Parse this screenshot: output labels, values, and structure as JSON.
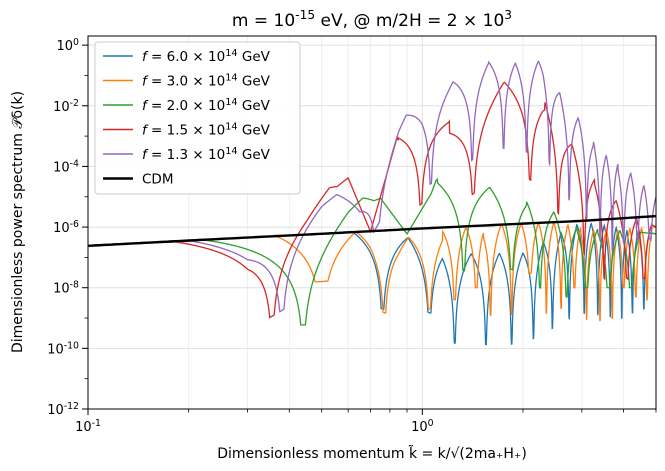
{
  "chart_data": {
    "type": "line",
    "title": "m = 10^{-15} eV,    @ m/2H = 2 × 10^{3}",
    "xlabel": "Dimensionless momentum k̃ = k/√(2ma₊H₊)",
    "ylabel": "Dimensionless power spectrum 𝒫δ(k)",
    "xscale": "log",
    "yscale": "log",
    "xlim": [
      0.1,
      5.0
    ],
    "ylim": [
      1e-12,
      2.0
    ],
    "grid": true,
    "legend_position": "top-left",
    "x_ticks": [
      {
        "value": 0.1,
        "label": "10^{-1}"
      },
      {
        "value": 1.0,
        "label": "10^{0}"
      }
    ],
    "y_ticks": [
      {
        "value": 1e-12,
        "label": "10^{-12}"
      },
      {
        "value": 1e-10,
        "label": "10^{-10}"
      },
      {
        "value": 1e-08,
        "label": "10^{-8}"
      },
      {
        "value": 1e-06,
        "label": "10^{-6}"
      },
      {
        "value": 0.0001,
        "label": "10^{-4}"
      },
      {
        "value": 0.01,
        "label": "10^{-2}"
      },
      {
        "value": 1.0,
        "label": "10^{0}"
      }
    ],
    "series": [
      {
        "name": "f = 6.0 × 10^{14} GeV",
        "color": "#1f77b4",
        "envelope": [
          [
            0.1,
            2.5e-07
          ],
          [
            0.5,
            6e-07
          ],
          [
            0.75,
            8.5e-07
          ],
          [
            1.3,
            1.3e-07
          ],
          [
            2.0,
            1.4e-07
          ],
          [
            3.0,
            1.5e-06
          ],
          [
            5.0,
            6e-07
          ]
        ],
        "minima": [
          [
            0.76,
            2e-09
          ],
          [
            1.05,
            1.5e-09
          ],
          [
            1.25,
            4e-11
          ],
          [
            1.55,
            1e-10
          ],
          [
            1.85,
            1e-10
          ],
          [
            2.15,
            8e-11
          ],
          [
            2.45,
            9e-11
          ],
          [
            2.75,
            1e-10
          ],
          [
            3.05,
            1.5e-10
          ],
          [
            3.35,
            2e-10
          ],
          [
            3.65,
            6e-10
          ],
          [
            3.95,
            1e-09
          ],
          [
            4.25,
            1.5e-09
          ],
          [
            4.6,
            2e-09
          ]
        ]
      },
      {
        "name": "f = 3.0 × 10^{14} GeV",
        "color": "#ff7f0e",
        "envelope": [
          [
            0.1,
            2.5e-07
          ],
          [
            0.5,
            6e-07
          ],
          [
            0.7,
            8e-07
          ],
          [
            0.85,
            4e-07
          ],
          [
            1.5,
            1.2e-06
          ],
          [
            2.5,
            1.5e-06
          ],
          [
            3.2,
            8e-07
          ],
          [
            5.0,
            1e-06
          ]
        ],
        "minima": [
          [
            0.5,
            1.6e-08
          ],
          [
            0.77,
            1.5e-09
          ],
          [
            1.05,
            2e-09
          ],
          [
            1.25,
            4e-09
          ],
          [
            1.45,
            1e-08
          ],
          [
            1.6,
            4e-10
          ],
          [
            1.85,
            1e-09
          ],
          [
            2.1,
            3e-08
          ],
          [
            2.35,
            4e-10
          ],
          [
            2.6,
            2e-09
          ],
          [
            2.85,
            1e-08
          ],
          [
            3.1,
            3e-11
          ],
          [
            3.4,
            4e-10
          ],
          [
            3.7,
            1e-09
          ],
          [
            4.0,
            1e-08
          ],
          [
            4.35,
            5e-09
          ],
          [
            4.7,
            4e-09
          ]
        ]
      },
      {
        "name": "f = 2.0 × 10^{14} GeV",
        "color": "#2ca02c",
        "envelope": [
          [
            0.1,
            2.5e-07
          ],
          [
            0.45,
            6e-07
          ],
          [
            0.6,
            6e-06
          ],
          [
            0.75,
            1.5e-05
          ],
          [
            0.9,
            1e-06
          ],
          [
            1.1,
            4e-05
          ],
          [
            1.3,
            4e-05
          ],
          [
            1.6,
            2e-05
          ],
          [
            2.0,
            1e-05
          ],
          [
            2.5,
            3e-06
          ],
          [
            3.0,
            1e-06
          ],
          [
            5.0,
            6e-07
          ]
        ],
        "minima": [
          [
            0.44,
            2.5e-10
          ],
          [
            0.89,
            7e-07
          ],
          [
            1.33,
            1e-10
          ],
          [
            1.85,
            4e-08
          ],
          [
            2.25,
            1e-08
          ],
          [
            2.7,
            5e-09
          ],
          [
            3.1,
            1e-08
          ],
          [
            3.6,
            1e-08
          ],
          [
            4.2,
            1e-08
          ]
        ]
      },
      {
        "name": "f = 1.5 × 10^{14} GeV",
        "color": "#d62728",
        "envelope": [
          [
            0.1,
            2.5e-07
          ],
          [
            0.3,
            4e-07
          ],
          [
            0.45,
            5e-06
          ],
          [
            0.6,
            6e-05
          ],
          [
            0.7,
            1e-06
          ],
          [
            0.85,
            0.002
          ],
          [
            1.0,
            0.006
          ],
          [
            1.2,
            0.003
          ],
          [
            1.5,
            0.02
          ],
          [
            1.75,
            0.06
          ],
          [
            2.0,
            0.05
          ],
          [
            2.3,
            0.02
          ],
          [
            2.7,
            0.001
          ],
          [
            3.2,
            6e-05
          ],
          [
            4.0,
            4e-06
          ],
          [
            5.0,
            1e-06
          ]
        ],
        "minima": [
          [
            0.355,
            5e-12
          ],
          [
            0.7,
            7e-07
          ],
          [
            0.99,
            1e-08
          ],
          [
            1.42,
            1.5e-08
          ],
          [
            2.1,
            5e-09
          ],
          [
            2.55,
            3e-10
          ],
          [
            3.05,
            2e-09
          ],
          [
            3.5,
            1e-08
          ],
          [
            4.1,
            2e-08
          ],
          [
            4.6,
            2e-08
          ]
        ]
      },
      {
        "name": "f = 1.3 × 10^{14} GeV",
        "color": "#9467bd",
        "envelope": [
          [
            0.1,
            2.5e-07
          ],
          [
            0.3,
            4e-07
          ],
          [
            0.5,
            1e-05
          ],
          [
            0.65,
            1.5e-05
          ],
          [
            0.85,
            0.003
          ],
          [
            1.0,
            0.02
          ],
          [
            1.2,
            0.05
          ],
          [
            1.45,
            0.2
          ],
          [
            1.75,
            0.4
          ],
          [
            2.0,
            0.3
          ],
          [
            2.3,
            0.3
          ],
          [
            2.7,
            0.01
          ],
          [
            3.0,
            0.003
          ],
          [
            3.3,
            0.0005
          ],
          [
            3.6,
            0.0002
          ],
          [
            4.0,
            0.0001
          ],
          [
            5.0,
            1e-05
          ]
        ],
        "minima": [
          [
            0.38,
            4e-10
          ],
          [
            0.73,
            1e-06
          ],
          [
            1.06,
            2e-07
          ],
          [
            1.41,
            1e-06
          ],
          [
            1.75,
            3e-06
          ],
          [
            2.05,
            1.5e-07
          ],
          [
            2.4,
            1e-08
          ],
          [
            2.75,
            1.5e-08
          ],
          [
            3.1,
            1e-08
          ],
          [
            3.4,
            3e-08
          ],
          [
            3.7,
            1e-07
          ],
          [
            4.0,
            3e-07
          ],
          [
            4.4,
            4e-07
          ],
          [
            4.8,
            4e-07
          ]
        ]
      },
      {
        "name": "CDM",
        "color": "#000000",
        "x": [
          0.1,
          0.2,
          0.5,
          1.0,
          2.0,
          3.0,
          5.0
        ],
        "y": [
          2.4e-07,
          3.6e-07,
          6e-07,
          9e-07,
          1.3e-06,
          1.6e-06,
          2.3e-06
        ]
      }
    ]
  }
}
